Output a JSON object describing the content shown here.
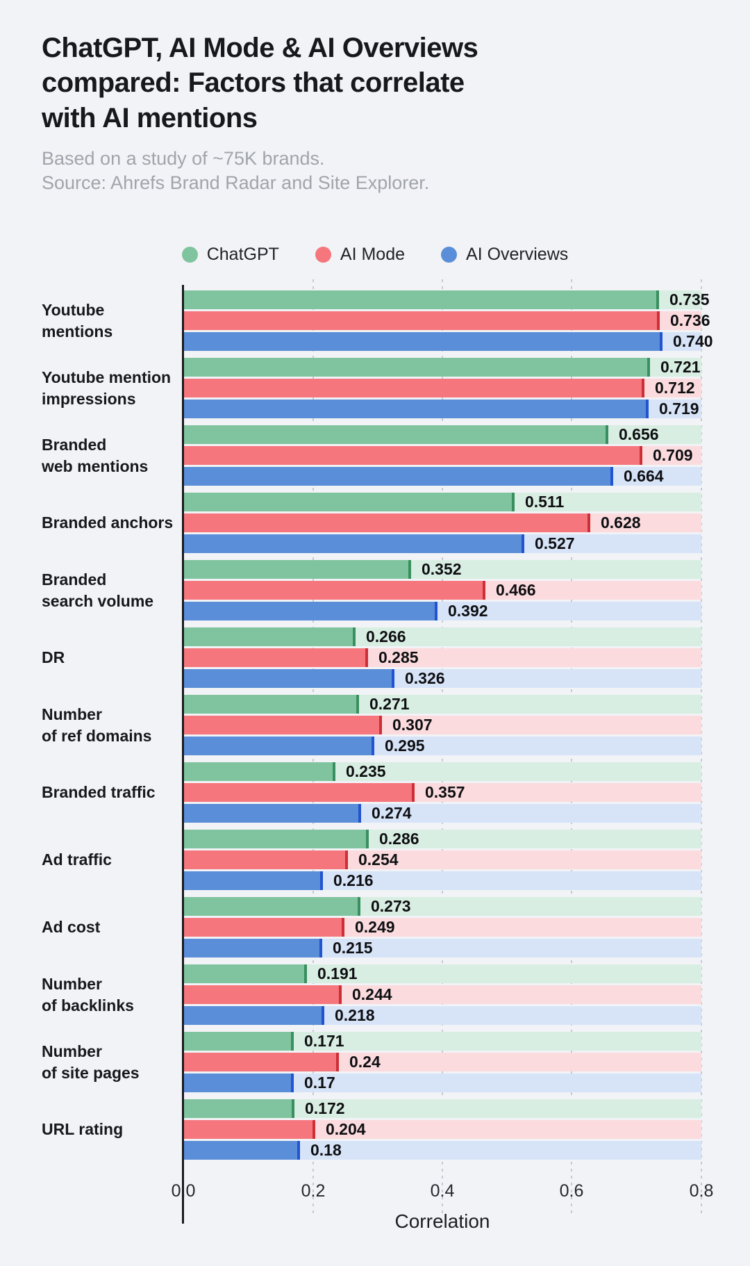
{
  "header": {
    "title_lines": [
      "ChatGPT, AI Mode & AI Overviews",
      "compared: Factors that correlate",
      "with AI mentions"
    ],
    "subtitle_lines": [
      "Based on a study of ~75K brands.",
      "Source: Ahrefs Brand Radar and Site Explorer."
    ]
  },
  "legend": {
    "items": [
      {
        "label": "ChatGPT",
        "color": "#7fc49e"
      },
      {
        "label": "AI Mode",
        "color": "#f5767c"
      },
      {
        "label": "AI Overviews",
        "color": "#5a8ed8"
      }
    ]
  },
  "chart_data": {
    "type": "bar",
    "orientation": "horizontal",
    "xlabel": "Correlation",
    "xlim": [
      0.0,
      0.8
    ],
    "x_ticks": [
      "0.0",
      "0.2",
      "0.4",
      "0.6",
      "0.8"
    ],
    "x_tick_values": [
      0.0,
      0.2,
      0.4,
      0.6,
      0.8
    ],
    "gridlines": {
      "style": "dotted-vertical",
      "at": [
        0.2,
        0.4,
        0.6,
        0.8
      ]
    },
    "legend_position": "top",
    "value_labels": "outside-end",
    "categories": [
      [
        "Youtube",
        "mentions"
      ],
      [
        "Youtube mention",
        "impressions"
      ],
      [
        "Branded",
        "web mentions"
      ],
      [
        "Branded anchors"
      ],
      [
        "Branded",
        "search volume"
      ],
      [
        "DR"
      ],
      [
        "Number",
        "of ref domains"
      ],
      [
        "Branded traffic"
      ],
      [
        "Ad traffic"
      ],
      [
        "Ad cost"
      ],
      [
        "Number",
        "of backlinks"
      ],
      [
        "Number",
        "of site pages"
      ],
      [
        "URL rating"
      ]
    ],
    "series": [
      {
        "name": "ChatGPT",
        "color": "#7fc49e",
        "edge_color": "#3a8f60",
        "track_color": "#d9eee2",
        "values": [
          0.735,
          0.721,
          0.656,
          0.511,
          0.352,
          0.266,
          0.271,
          0.235,
          0.286,
          0.273,
          0.191,
          0.171,
          0.172
        ],
        "labels": [
          "0.735",
          "0.721",
          "0.656",
          "0.511",
          "0.352",
          "0.266",
          "0.271",
          "0.235",
          "0.286",
          "0.273",
          "0.191",
          "0.171",
          "0.172"
        ]
      },
      {
        "name": "AI Mode",
        "color": "#f5767c",
        "edge_color": "#cc2f36",
        "track_color": "#fbdbde",
        "values": [
          0.736,
          0.712,
          0.709,
          0.628,
          0.466,
          0.285,
          0.307,
          0.357,
          0.254,
          0.249,
          0.244,
          0.24,
          0.204
        ],
        "labels": [
          "0.736",
          "0.712",
          "0.709",
          "0.628",
          "0.466",
          "0.285",
          "0.307",
          "0.357",
          "0.254",
          "0.249",
          "0.244",
          "0.24",
          "0.204"
        ]
      },
      {
        "name": "AI Overviews",
        "color": "#5a8ed8",
        "edge_color": "#2254cf",
        "track_color": "#d7e4f8",
        "values": [
          0.74,
          0.719,
          0.664,
          0.527,
          0.392,
          0.326,
          0.295,
          0.274,
          0.216,
          0.215,
          0.218,
          0.17,
          0.18
        ],
        "labels": [
          "0.740",
          "0.719",
          "0.664",
          "0.527",
          "0.392",
          "0.326",
          "0.295",
          "0.274",
          "0.216",
          "0.215",
          "0.218",
          "0.17",
          "0.18"
        ]
      }
    ]
  }
}
